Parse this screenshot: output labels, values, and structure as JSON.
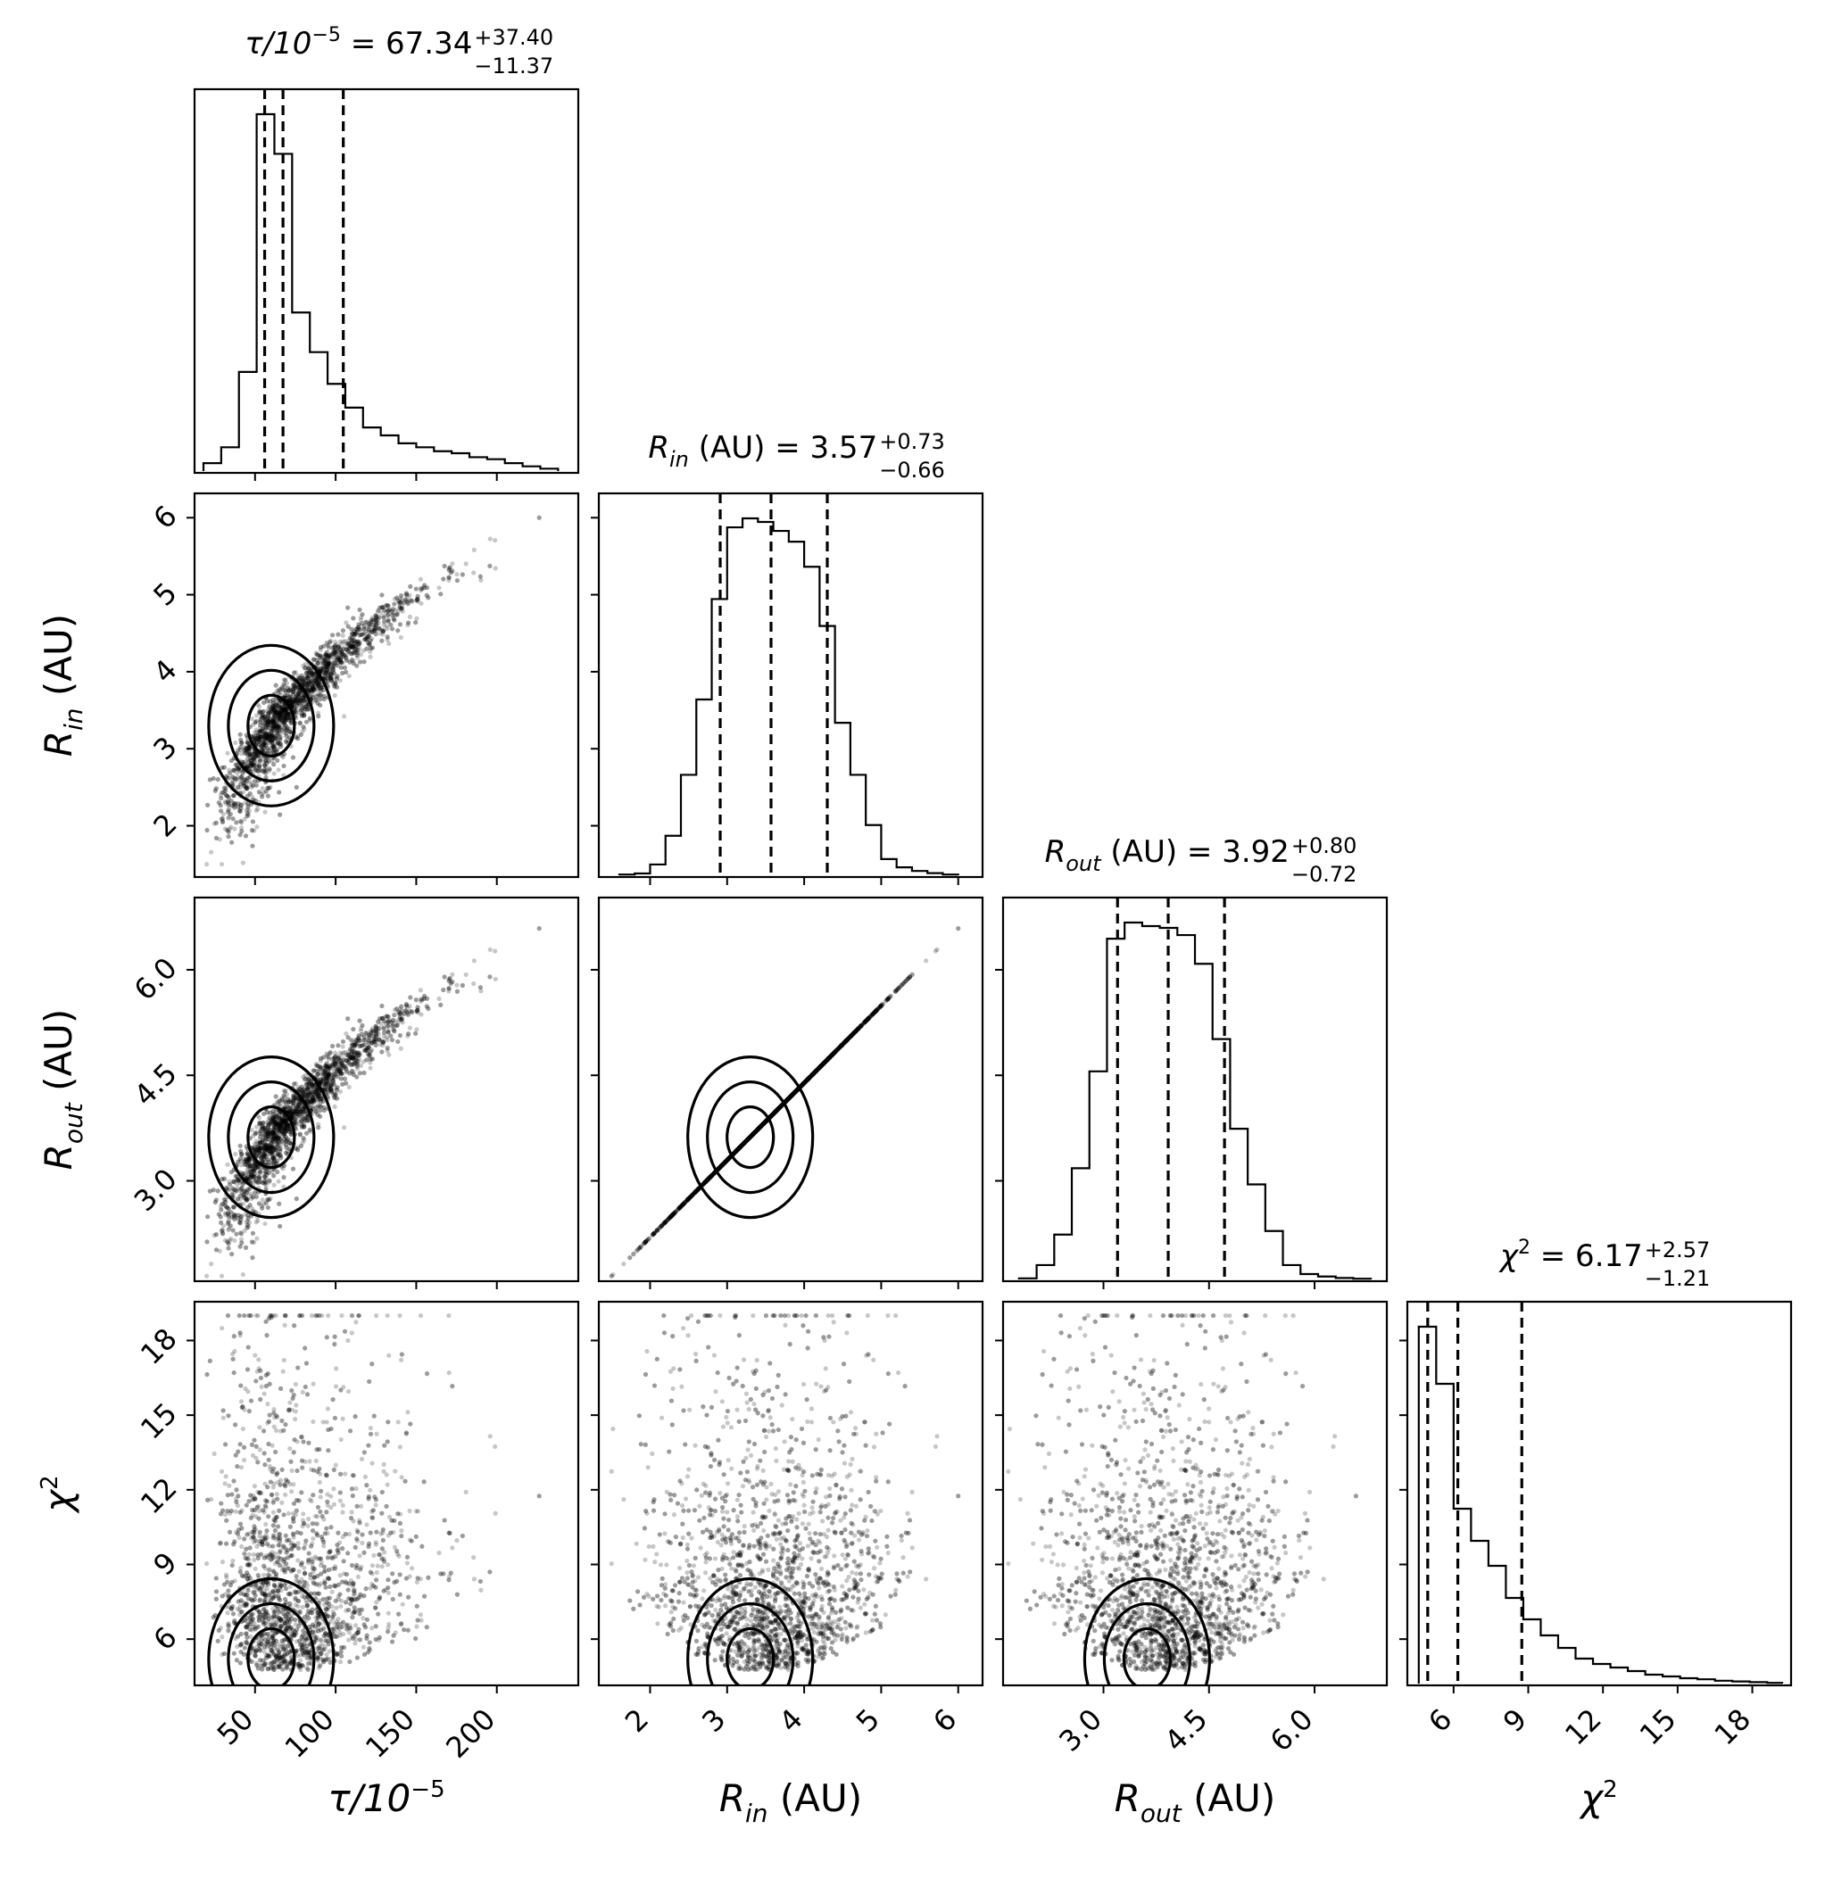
{
  "chart_data": {
    "type": "corner",
    "parameters": [
      {
        "key": "tau",
        "axis_label": "τ/10",
        "axis_label_sup": "−5",
        "range": [
          18,
          245
        ],
        "ticks": [
          50,
          100,
          150,
          200
        ],
        "tick_labels": [
          "50",
          "100",
          "150",
          "200"
        ],
        "title_lhs": "τ/10",
        "title_lhs_sup": "−5",
        "median": "67.34",
        "plus": "+37.40",
        "minus": "−11.37",
        "quantiles": [
          55.97,
          67.34,
          104.74
        ]
      },
      {
        "key": "rin",
        "axis_label": "R",
        "axis_label_sub": "in",
        "axis_label_rest": " (AU)",
        "range": [
          1.45,
          6.2
        ],
        "ticks": [
          2,
          3,
          4,
          5,
          6
        ],
        "tick_labels": [
          "2",
          "3",
          "4",
          "5",
          "6"
        ],
        "title_lhs": "R",
        "title_lhs_sub": "in",
        "title_lhs_rest": " (AU)",
        "median": "3.57",
        "plus": "+0.73",
        "minus": "−0.66",
        "quantiles": [
          2.91,
          3.57,
          4.3
        ]
      },
      {
        "key": "rout",
        "axis_label": "R",
        "axis_label_sub": "out",
        "axis_label_rest": " (AU)",
        "range": [
          1.7,
          6.9
        ],
        "ticks": [
          3.0,
          4.5,
          6.0
        ],
        "tick_labels": [
          "3.0",
          "4.5",
          "6.0"
        ],
        "title_lhs": "R",
        "title_lhs_sub": "out",
        "title_lhs_rest": " (AU)",
        "median": "3.92",
        "plus": "+0.80",
        "minus": "−0.72",
        "quantiles": [
          3.2,
          3.92,
          4.72
        ]
      },
      {
        "key": "chi2",
        "axis_label": "χ",
        "axis_label_sup": "2",
        "range": [
          4.5,
          19.2
        ],
        "ticks": [
          6,
          9,
          12,
          15,
          18
        ],
        "tick_labels": [
          "6",
          "9",
          "12",
          "15",
          "18"
        ],
        "title_lhs": "χ",
        "title_lhs_sup": "2",
        "median": "6.17",
        "plus": "+2.57",
        "minus": "−1.21",
        "quantiles": [
          4.96,
          6.17,
          8.74
        ]
      }
    ],
    "histograms": {
      "tau": {
        "bins": [
          18,
          29,
          40,
          51,
          62,
          73,
          84,
          95,
          106,
          117,
          128,
          139,
          150,
          161,
          172,
          183,
          194,
          205,
          216,
          227,
          238
        ],
        "counts": [
          0.2,
          0.6,
          2.5,
          9.0,
          8.0,
          4.0,
          3.0,
          2.2,
          1.6,
          1.1,
          0.9,
          0.7,
          0.6,
          0.5,
          0.45,
          0.35,
          0.3,
          0.2,
          0.12,
          0.06
        ]
      },
      "rin": {
        "bins": [
          1.6,
          1.8,
          2.0,
          2.2,
          2.4,
          2.6,
          2.8,
          3.0,
          3.2,
          3.4,
          3.6,
          3.8,
          4.0,
          4.2,
          4.4,
          4.6,
          4.8,
          5.0,
          5.2,
          5.4,
          5.6,
          5.8,
          6.0
        ],
        "counts": [
          0.02,
          0.05,
          0.3,
          1.1,
          2.8,
          4.9,
          7.7,
          9.7,
          9.95,
          9.85,
          9.6,
          9.3,
          8.6,
          6.95,
          4.25,
          2.8,
          1.4,
          0.45,
          0.22,
          0.12,
          0.06,
          0.02
        ]
      },
      "rout": {
        "bins": [
          1.8,
          2.05,
          2.3,
          2.55,
          2.8,
          3.05,
          3.3,
          3.55,
          3.8,
          4.05,
          4.3,
          4.55,
          4.8,
          5.05,
          5.3,
          5.55,
          5.8,
          6.05,
          6.3,
          6.55,
          6.8
        ],
        "counts": [
          0.03,
          0.4,
          1.25,
          3.1,
          5.8,
          9.5,
          9.95,
          9.85,
          9.8,
          9.6,
          8.8,
          6.7,
          4.2,
          2.65,
          1.35,
          0.4,
          0.15,
          0.08,
          0.04,
          0.02
        ]
      },
      "chi2": {
        "bins": [
          4.6,
          5.3,
          6.0,
          6.7,
          7.4,
          8.1,
          8.8,
          9.5,
          10.2,
          10.9,
          11.6,
          12.3,
          13.0,
          13.7,
          14.4,
          15.1,
          15.8,
          16.5,
          17.2,
          17.9,
          18.6,
          19.2
        ],
        "counts": [
          10.0,
          8.4,
          4.9,
          4.0,
          3.3,
          2.4,
          1.8,
          1.35,
          1.0,
          0.7,
          0.55,
          0.45,
          0.35,
          0.25,
          0.2,
          0.15,
          0.12,
          0.08,
          0.06,
          0.04,
          0.02
        ]
      }
    },
    "title_equals": " = ",
    "contour_levels": [
      "39%",
      "86%",
      "99%"
    ],
    "show_datapoints": true,
    "xlabel_rotation_deg": -45
  }
}
